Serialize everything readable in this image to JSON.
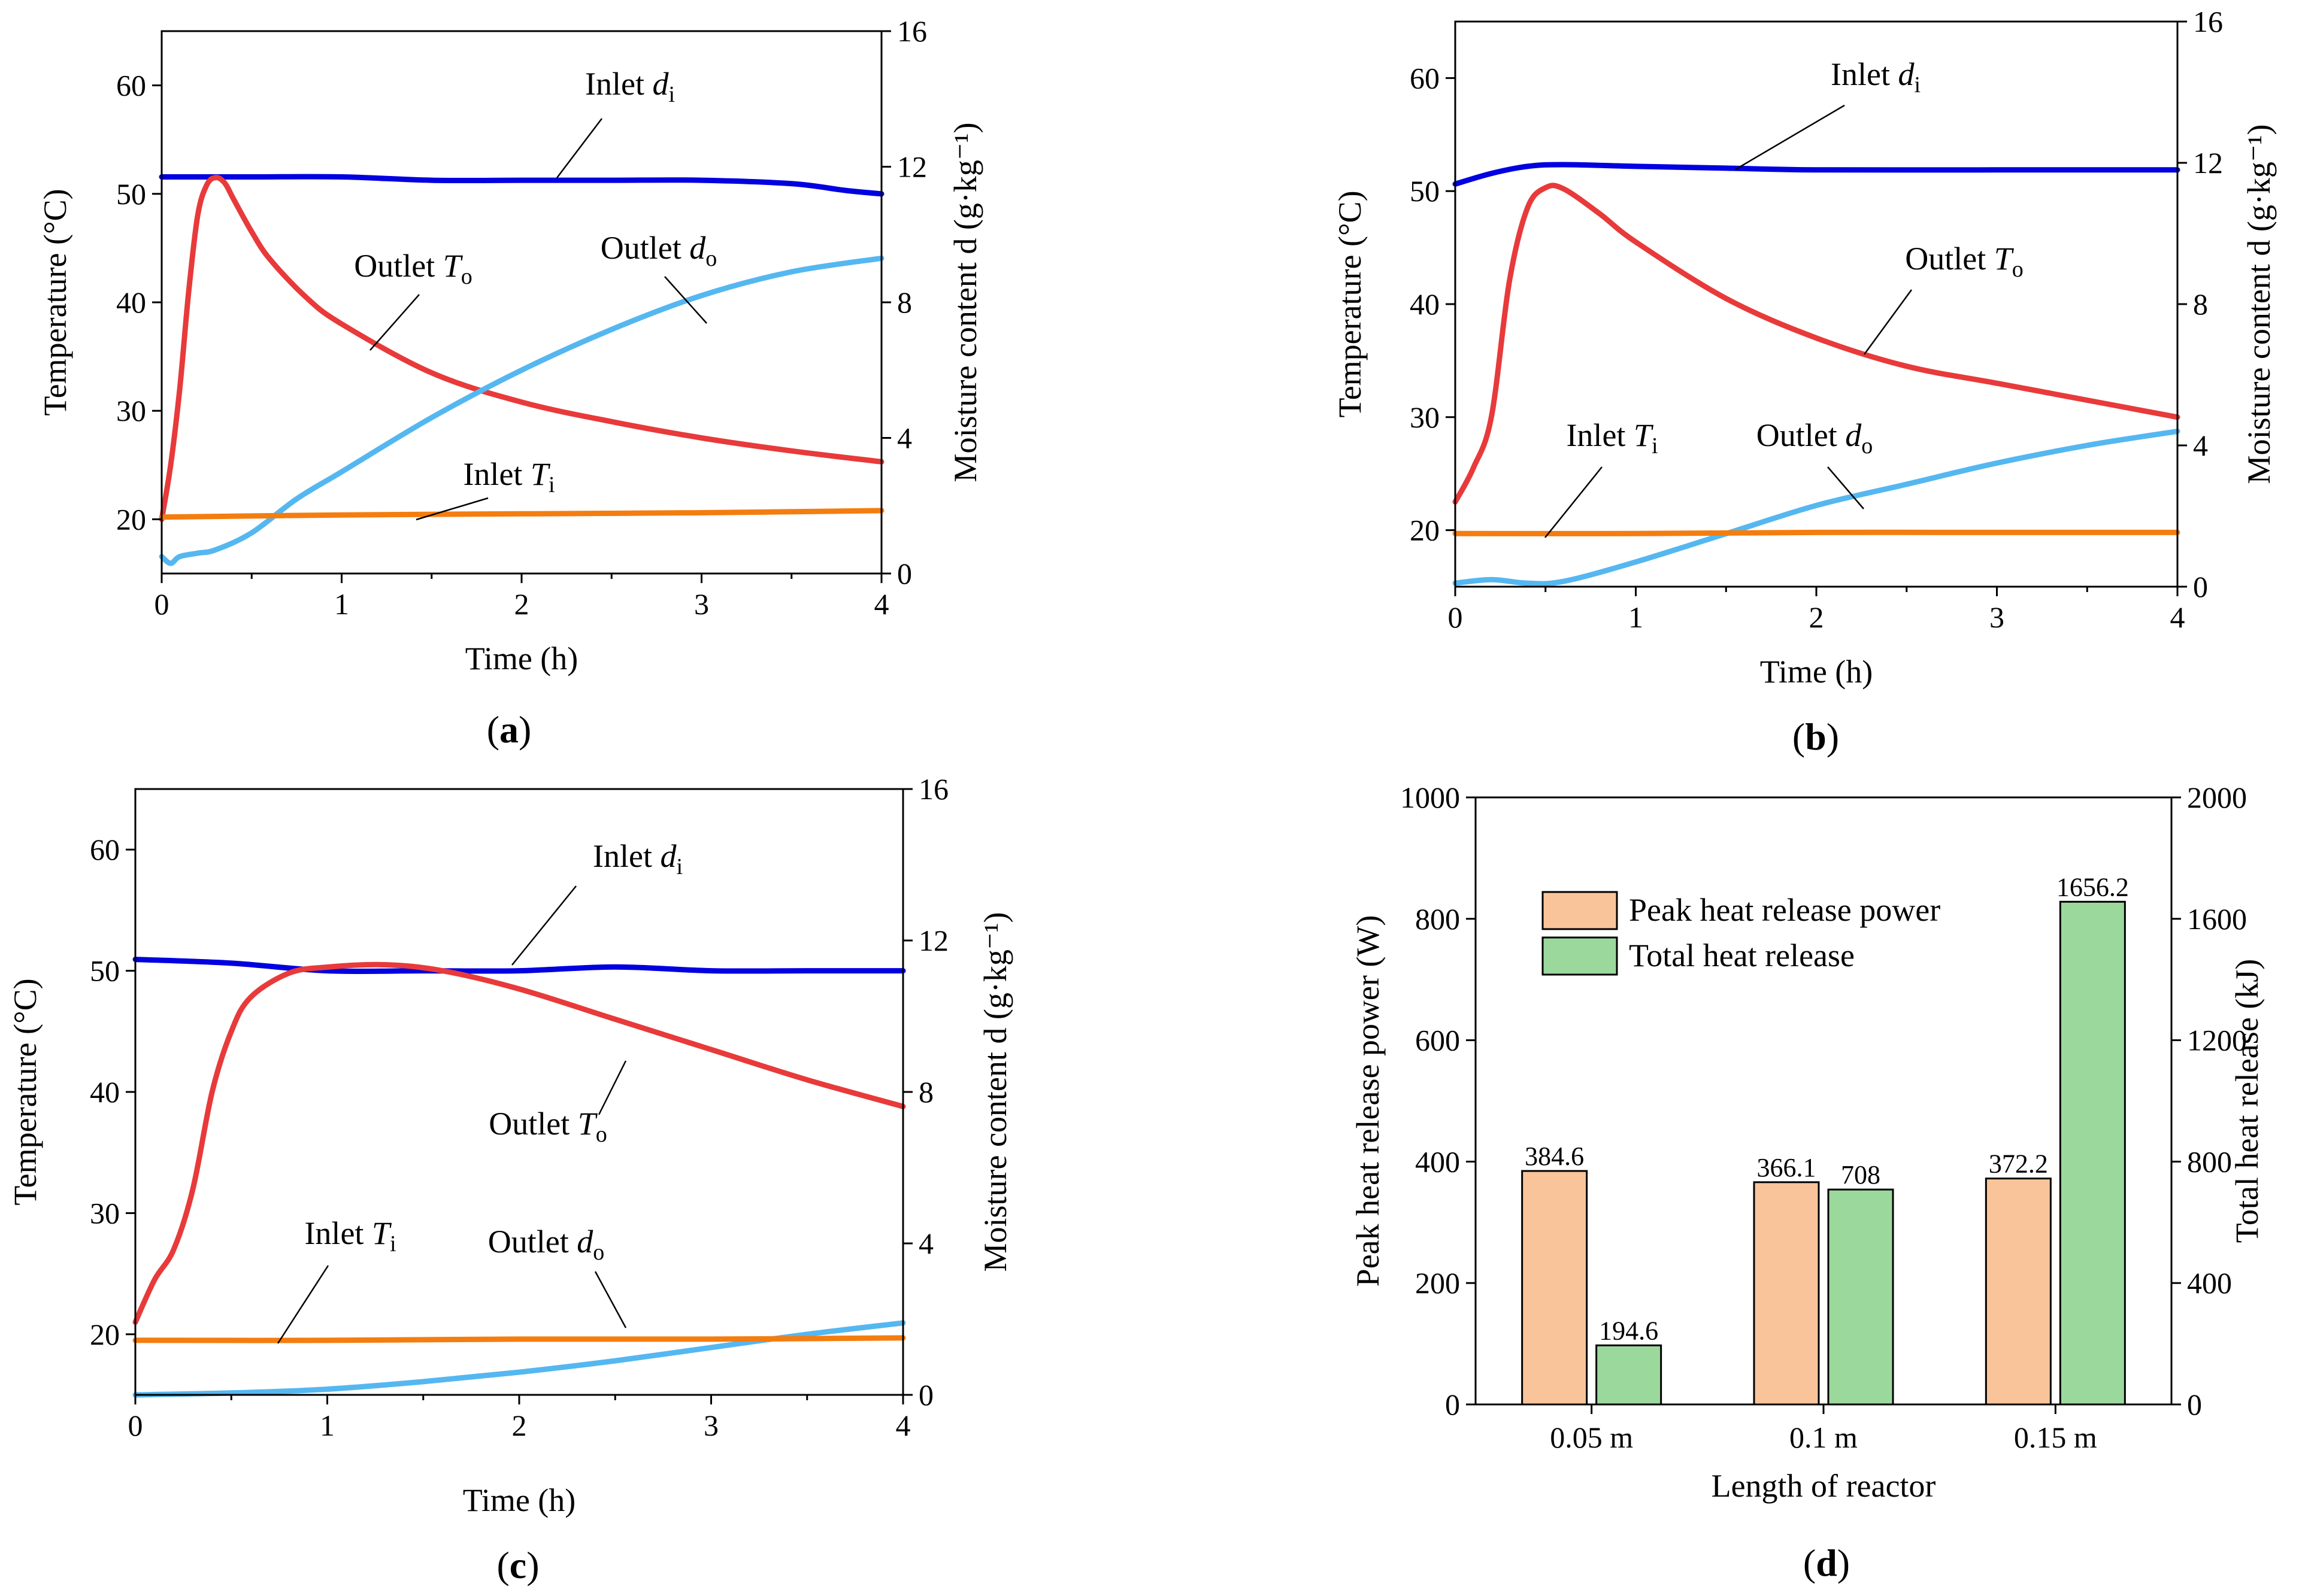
{
  "chart_data": [
    {
      "panel": "a",
      "type": "line",
      "panel_label": "(a)",
      "xlabel": "Time  (h)",
      "ylabel": "Temperature (°C)",
      "ylabel2": "Moisture content d (g·kg⁻¹)",
      "xlim": [
        0,
        4
      ],
      "ylim": [
        15,
        65
      ],
      "y2lim": [
        0,
        16
      ],
      "xticks": [
        0,
        1,
        2,
        3,
        4
      ],
      "yticks": [
        20,
        30,
        40,
        50,
        60
      ],
      "y2ticks": [
        0,
        4,
        8,
        12,
        16
      ],
      "series": [
        {
          "name": "Inlet d_i",
          "axis": "right",
          "color": "#0000e0",
          "x": [
            0,
            0.5,
            1,
            1.5,
            2,
            2.5,
            3,
            3.5,
            3.8,
            4
          ],
          "y": [
            11.7,
            11.7,
            11.7,
            11.6,
            11.6,
            11.6,
            11.6,
            11.5,
            11.3,
            11.2
          ]
        },
        {
          "name": "Outlet T_o",
          "axis": "left",
          "color": "#e83a3a",
          "x": [
            0,
            0.05,
            0.1,
            0.15,
            0.2,
            0.25,
            0.3,
            0.35,
            0.4,
            0.5,
            0.6,
            0.8,
            1,
            1.5,
            2,
            2.5,
            3,
            3.5,
            4
          ],
          "y": [
            20,
            25,
            32,
            41,
            48,
            50.8,
            51.5,
            51,
            49.5,
            46.5,
            44,
            40.5,
            38,
            33.5,
            30.8,
            29,
            27.5,
            26.3,
            25.3
          ]
        },
        {
          "name": "Outlet d_o",
          "axis": "right",
          "color": "#55b7f0",
          "x": [
            0,
            0.05,
            0.1,
            0.2,
            0.3,
            0.5,
            0.75,
            1,
            1.5,
            2,
            2.5,
            3,
            3.5,
            4
          ],
          "y": [
            0.5,
            0.3,
            0.5,
            0.6,
            0.7,
            1.2,
            2.2,
            3.0,
            4.6,
            6.0,
            7.2,
            8.2,
            8.9,
            9.3
          ]
        },
        {
          "name": "Inlet T_i",
          "axis": "left",
          "color": "#f47d10",
          "x": [
            0,
            1,
            2,
            3,
            4
          ],
          "y": [
            20.2,
            20.4,
            20.5,
            20.6,
            20.8
          ]
        }
      ],
      "annotations": [
        {
          "prefix": "Inlet ",
          "italic": "d",
          "sub": "i"
        },
        {
          "prefix": "Outlet ",
          "italic": "T",
          "sub": "o"
        },
        {
          "prefix": "Outlet ",
          "italic": "d",
          "sub": "o"
        },
        {
          "prefix": "Inlet ",
          "italic": "T",
          "sub": "i"
        }
      ]
    },
    {
      "panel": "b",
      "type": "line",
      "panel_label": "(b)",
      "xlabel": "Time  (h)",
      "ylabel": "Temperature (°C)",
      "ylabel2": "Moisture content d (g·kg⁻¹)",
      "xlim": [
        0,
        4
      ],
      "ylim": [
        15,
        65
      ],
      "y2lim": [
        0,
        16
      ],
      "xticks": [
        0,
        1,
        2,
        3,
        4
      ],
      "yticks": [
        20,
        30,
        40,
        50,
        60
      ],
      "y2ticks": [
        0,
        4,
        8,
        12,
        16
      ],
      "series": [
        {
          "name": "Inlet d_i",
          "axis": "right",
          "color": "#0000e0",
          "x": [
            0,
            0.2,
            0.4,
            0.6,
            1,
            1.5,
            2,
            3,
            4
          ],
          "y": [
            11.4,
            11.7,
            11.9,
            11.95,
            11.9,
            11.85,
            11.8,
            11.8,
            11.8
          ]
        },
        {
          "name": "Outlet T_o",
          "axis": "left",
          "color": "#e83a3a",
          "x": [
            0,
            0.1,
            0.2,
            0.3,
            0.4,
            0.5,
            0.6,
            0.8,
            1,
            1.5,
            2,
            2.5,
            3,
            3.5,
            4
          ],
          "y": [
            22.5,
            25.5,
            30,
            42,
            48.5,
            50.3,
            50.2,
            48,
            45.5,
            40.5,
            37,
            34.5,
            33,
            31.5,
            30
          ]
        },
        {
          "name": "Outlet d_o",
          "axis": "right",
          "color": "#55b7f0",
          "x": [
            0,
            0.2,
            0.4,
            0.6,
            1,
            1.5,
            2,
            2.5,
            3,
            3.5,
            4
          ],
          "y": [
            0.1,
            0.2,
            0.1,
            0.15,
            0.7,
            1.5,
            2.3,
            2.9,
            3.5,
            4.0,
            4.4
          ]
        },
        {
          "name": "Inlet T_i",
          "axis": "left",
          "color": "#f47d10",
          "x": [
            0,
            1,
            2,
            3,
            4
          ],
          "y": [
            19.7,
            19.7,
            19.8,
            19.8,
            19.8
          ]
        }
      ],
      "annotations": [
        {
          "prefix": "Inlet ",
          "italic": "d",
          "sub": "i"
        },
        {
          "prefix": "Outlet ",
          "italic": "T",
          "sub": "o"
        },
        {
          "prefix": "Inlet ",
          "italic": "T",
          "sub": "i"
        },
        {
          "prefix": "Outlet ",
          "italic": "d",
          "sub": "o"
        }
      ]
    },
    {
      "panel": "c",
      "type": "line",
      "panel_label": "(c)",
      "xlabel": "Time  (h)",
      "ylabel": "Temperature (°C)",
      "ylabel2": "Moisture content d (g·kg⁻¹)",
      "xlim": [
        0,
        4
      ],
      "ylim": [
        15,
        65
      ],
      "y2lim": [
        0,
        16
      ],
      "xticks": [
        0,
        1,
        2,
        3,
        4
      ],
      "yticks": [
        20,
        30,
        40,
        50,
        60
      ],
      "y2ticks": [
        0,
        4,
        8,
        12,
        16
      ],
      "series": [
        {
          "name": "Inlet d_i",
          "axis": "right",
          "color": "#0000e0",
          "x": [
            0,
            0.5,
            1,
            1.5,
            2,
            2.5,
            3,
            3.5,
            4
          ],
          "y": [
            11.5,
            11.4,
            11.2,
            11.2,
            11.2,
            11.3,
            11.2,
            11.2,
            11.2
          ]
        },
        {
          "name": "Outlet T_o",
          "axis": "left",
          "color": "#e83a3a",
          "x": [
            0,
            0.1,
            0.2,
            0.3,
            0.4,
            0.5,
            0.6,
            0.8,
            1,
            1.3,
            1.6,
            2,
            2.5,
            3,
            3.5,
            4
          ],
          "y": [
            21,
            24.5,
            27,
            32,
            40,
            45,
            47.8,
            49.8,
            50.3,
            50.5,
            50,
            48.5,
            46,
            43.5,
            41,
            38.8
          ]
        },
        {
          "name": "Outlet d_o",
          "axis": "right",
          "color": "#55b7f0",
          "x": [
            0,
            0.5,
            1,
            1.5,
            2,
            2.5,
            3,
            3.5,
            4
          ],
          "y": [
            0.0,
            0.05,
            0.15,
            0.35,
            0.6,
            0.9,
            1.25,
            1.6,
            1.9
          ]
        },
        {
          "name": "Inlet T_i",
          "axis": "left",
          "color": "#f47d10",
          "x": [
            0,
            1,
            2,
            3,
            4
          ],
          "y": [
            19.5,
            19.5,
            19.6,
            19.6,
            19.7
          ]
        }
      ],
      "annotations": [
        {
          "prefix": "Inlet ",
          "italic": "d",
          "sub": "i"
        },
        {
          "prefix": "Outlet ",
          "italic": "T",
          "sub": "o"
        },
        {
          "prefix": "Inlet ",
          "italic": "T",
          "sub": "i"
        },
        {
          "prefix": "Outlet ",
          "italic": "d",
          "sub": "o"
        }
      ]
    },
    {
      "panel": "d",
      "type": "bar",
      "panel_label": "(d)",
      "xlabel": "Length of reactor",
      "ylabel": "Peak heat release power (W)",
      "ylabel2": "Total heat release (kJ)",
      "categories": [
        "0.05 m",
        "0.1 m",
        "0.15 m"
      ],
      "ylim": [
        0,
        1000
      ],
      "y2lim": [
        0,
        2000
      ],
      "yticks": [
        0,
        200,
        400,
        600,
        800,
        1000
      ],
      "y2ticks": [
        0,
        400,
        800,
        1200,
        1600,
        2000
      ],
      "series": [
        {
          "name": "Peak heat release power",
          "axis": "left",
          "color": "#f9c49a",
          "values": [
            384.6,
            366.1,
            372.2
          ],
          "labels": [
            "384.6",
            "366.1",
            "372.2"
          ]
        },
        {
          "name": "Total heat release",
          "axis": "right",
          "color": "#9bd89c",
          "values": [
            194.6,
            708,
            1656.2
          ],
          "labels": [
            "194.6",
            "708",
            "1656.2"
          ]
        }
      ],
      "legend": [
        "Peak heat release power",
        "Total heat release"
      ]
    }
  ]
}
